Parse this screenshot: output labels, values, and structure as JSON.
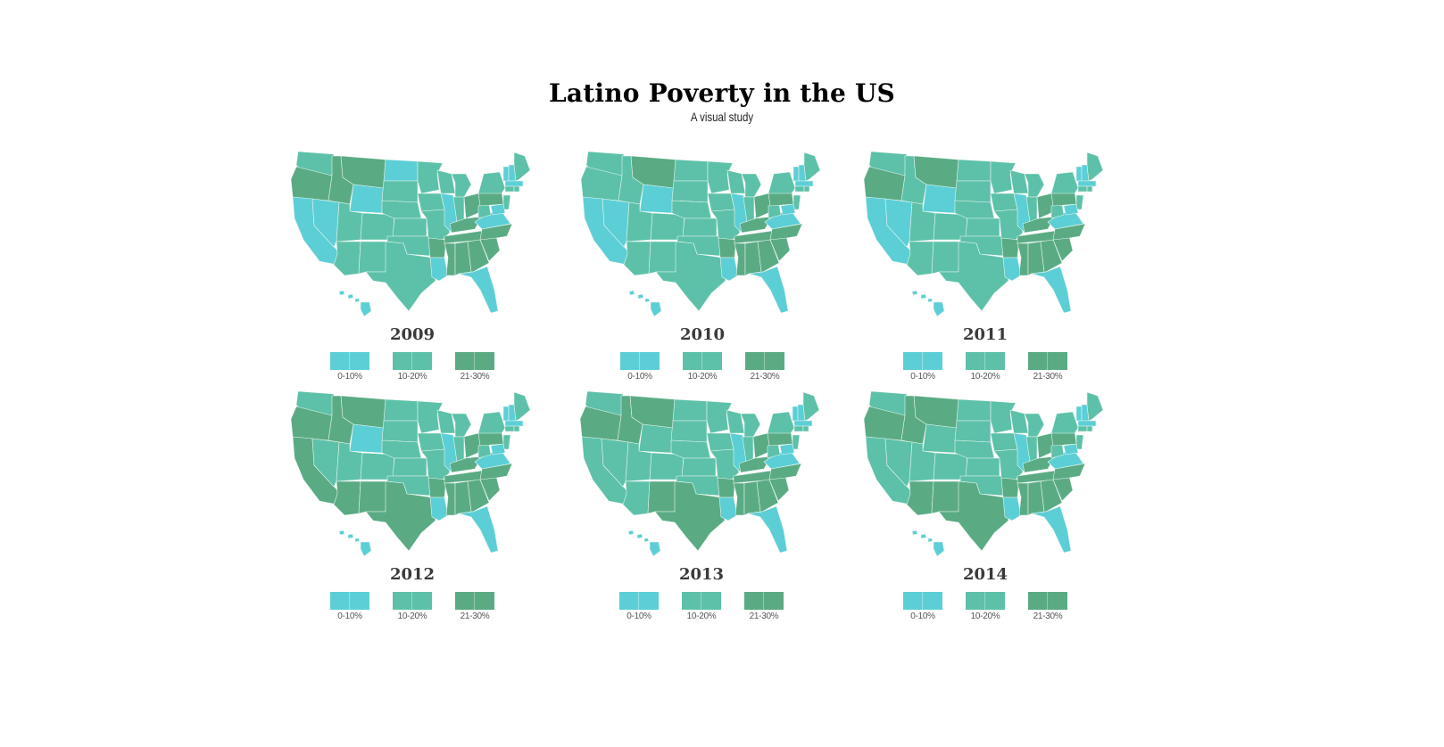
{
  "header": {
    "title": "Latino Poverty in the US",
    "subtitle": "A visual study"
  },
  "colors": {
    "low": "#5ccfd6",
    "mid": "#5cc1a8",
    "high": "#5aab84",
    "border": "#e8f4f0"
  },
  "legend": [
    {
      "label": "0-10%",
      "color": "#5ccfd6"
    },
    {
      "label": "10-20%",
      "color": "#5cc1a8"
    },
    {
      "label": "21-30%",
      "color": "#5aab84"
    }
  ],
  "maps": [
    {
      "year": "2009"
    },
    {
      "year": "2010"
    },
    {
      "year": "2011"
    },
    {
      "year": "2012"
    },
    {
      "year": "2013"
    },
    {
      "year": "2014"
    }
  ]
}
